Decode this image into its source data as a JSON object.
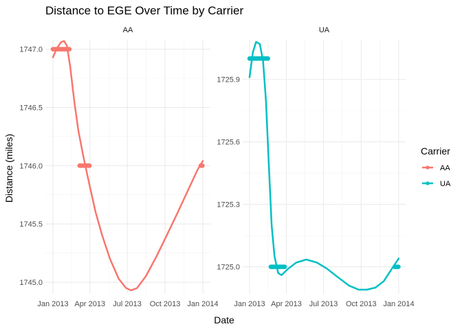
{
  "chart_data": {
    "type": "line",
    "title": "Distance to EGE Over Time by Carrier",
    "xlabel": "Date",
    "ylabel": "Distance (miles)",
    "grid": true,
    "legend": {
      "title": "Carrier",
      "placement": "right",
      "entries": [
        {
          "label": "AA",
          "color": "#F8766D"
        },
        {
          "label": "UA",
          "color": "#00BFC4"
        }
      ]
    },
    "x_tick_labels": [
      "Jan 2013",
      "Apr 2013",
      "Jul 2013",
      "Oct 2013",
      "Jan 2014"
    ],
    "x_tick_dates": [
      "2013-01-01",
      "2013-04-01",
      "2013-07-01",
      "2013-10-01",
      "2014-01-01"
    ],
    "panels": [
      {
        "label": "AA",
        "color": "#F8766D",
        "ylim": [
          1744.9,
          1747.08
        ],
        "y_ticks": [
          1745.0,
          1745.5,
          1746.0,
          1746.5,
          1747.0
        ],
        "y_tick_labels": [
          "1745.0",
          "1745.5",
          "1746.0",
          "1746.5",
          "1747.0"
        ],
        "points": [
          {
            "x_range": [
              "2013-01-01",
              "2013-02-10"
            ],
            "y": 1747.0
          },
          {
            "x_range": [
              "2013-03-07",
              "2013-03-31"
            ],
            "y": 1746.0
          },
          {
            "x_range": [
              "2013-12-27",
              "2013-12-31"
            ],
            "y": 1746.0
          }
        ],
        "smooth": [
          {
            "x": "2013-01-01",
            "y": 1746.93
          },
          {
            "x": "2013-01-11",
            "y": 1747.01
          },
          {
            "x": "2013-01-21",
            "y": 1747.06
          },
          {
            "x": "2013-01-28",
            "y": 1747.07
          },
          {
            "x": "2013-02-04",
            "y": 1747.03
          },
          {
            "x": "2013-02-12",
            "y": 1746.85
          },
          {
            "x": "2013-02-22",
            "y": 1746.55
          },
          {
            "x": "2013-03-04",
            "y": 1746.3
          },
          {
            "x": "2013-03-16",
            "y": 1746.08
          },
          {
            "x": "2013-03-30",
            "y": 1745.85
          },
          {
            "x": "2013-04-15",
            "y": 1745.6
          },
          {
            "x": "2013-05-01",
            "y": 1745.4
          },
          {
            "x": "2013-05-20",
            "y": 1745.2
          },
          {
            "x": "2013-06-10",
            "y": 1745.03
          },
          {
            "x": "2013-06-28",
            "y": 1744.95
          },
          {
            "x": "2013-07-10",
            "y": 1744.93
          },
          {
            "x": "2013-07-25",
            "y": 1744.95
          },
          {
            "x": "2013-08-15",
            "y": 1745.05
          },
          {
            "x": "2013-09-10",
            "y": 1745.22
          },
          {
            "x": "2013-10-05",
            "y": 1745.4
          },
          {
            "x": "2013-11-01",
            "y": 1745.6
          },
          {
            "x": "2013-11-30",
            "y": 1745.82
          },
          {
            "x": "2013-12-20",
            "y": 1745.97
          },
          {
            "x": "2014-01-01",
            "y": 1746.04
          }
        ]
      },
      {
        "label": "UA",
        "color": "#00BFC4",
        "ylim": [
          1724.87,
          1726.09
        ],
        "y_ticks": [
          1725.0,
          1725.3,
          1725.6,
          1725.9
        ],
        "y_tick_labels": [
          "1725.0",
          "1725.3",
          "1725.6",
          "1725.9"
        ],
        "points": [
          {
            "x_range": [
              "2013-01-01",
              "2013-02-15"
            ],
            "y": 1726.0
          },
          {
            "x_range": [
              "2013-02-22",
              "2013-03-28"
            ],
            "y": 1725.0
          },
          {
            "x_range": [
              "2013-12-22",
              "2013-12-31"
            ],
            "y": 1725.0
          }
        ],
        "smooth": [
          {
            "x": "2013-01-01",
            "y": 1725.91
          },
          {
            "x": "2013-01-09",
            "y": 1726.03
          },
          {
            "x": "2013-01-17",
            "y": 1726.08
          },
          {
            "x": "2013-01-26",
            "y": 1726.07
          },
          {
            "x": "2013-02-03",
            "y": 1725.99
          },
          {
            "x": "2013-02-10",
            "y": 1725.8
          },
          {
            "x": "2013-02-17",
            "y": 1725.5
          },
          {
            "x": "2013-02-24",
            "y": 1725.2
          },
          {
            "x": "2013-03-03",
            "y": 1725.05
          },
          {
            "x": "2013-03-12",
            "y": 1724.97
          },
          {
            "x": "2013-03-20",
            "y": 1724.96
          },
          {
            "x": "2013-04-05",
            "y": 1724.99
          },
          {
            "x": "2013-04-25",
            "y": 1725.02
          },
          {
            "x": "2013-05-20",
            "y": 1725.035
          },
          {
            "x": "2013-06-15",
            "y": 1725.02
          },
          {
            "x": "2013-07-10",
            "y": 1724.99
          },
          {
            "x": "2013-08-05",
            "y": 1724.95
          },
          {
            "x": "2013-09-01",
            "y": 1724.91
          },
          {
            "x": "2013-09-25",
            "y": 1724.89
          },
          {
            "x": "2013-10-15",
            "y": 1724.89
          },
          {
            "x": "2013-11-05",
            "y": 1724.9
          },
          {
            "x": "2013-11-25",
            "y": 1724.93
          },
          {
            "x": "2013-12-15",
            "y": 1724.99
          },
          {
            "x": "2014-01-01",
            "y": 1725.04
          }
        ]
      }
    ]
  }
}
